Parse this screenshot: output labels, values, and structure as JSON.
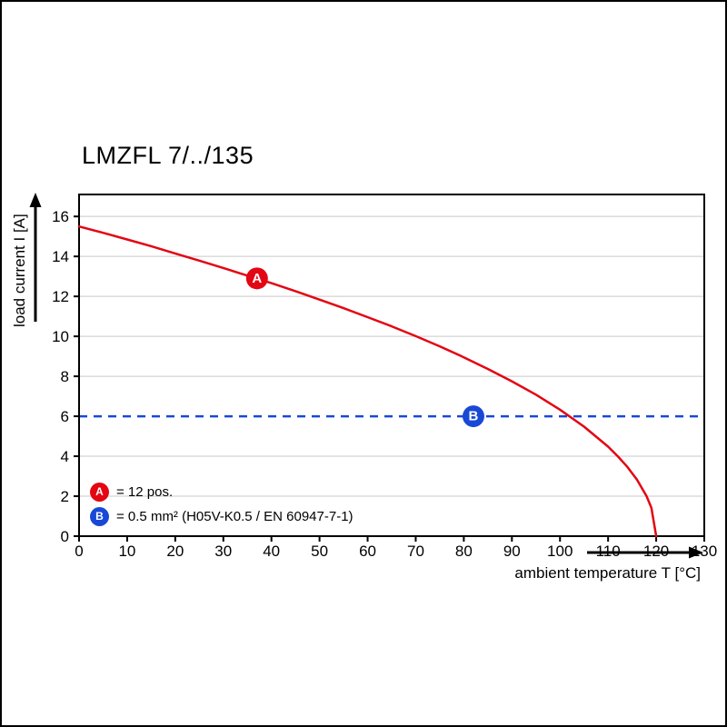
{
  "page": {
    "title": "LMZFL 7/../135"
  },
  "colors": {
    "curve_red": "#e30613",
    "line_blue": "#1849d6",
    "grid_gray": "#c9c9c9",
    "axis_black": "#000000",
    "background": "#ffffff"
  },
  "chart_data": {
    "type": "line",
    "title": "LMZFL 7/../135",
    "xlabel": "ambient temperature T [°C]",
    "ylabel": "load current I [A]",
    "xlim": [
      0,
      130
    ],
    "ylim": [
      0,
      17.1
    ],
    "x_ticks": [
      0,
      10,
      20,
      30,
      40,
      50,
      60,
      70,
      80,
      90,
      100,
      110,
      120,
      130
    ],
    "y_ticks": [
      0,
      2,
      4,
      6,
      8,
      10,
      12,
      14,
      16
    ],
    "grid": "horizontal-light",
    "legend_position": "inside-bottom-left",
    "series": [
      {
        "name": "derating-curve-12pos",
        "color": "#e30613",
        "style": "solid",
        "points": [
          [
            0,
            15.5
          ],
          [
            5,
            15.18
          ],
          [
            10,
            14.85
          ],
          [
            15,
            14.51
          ],
          [
            20,
            14.15
          ],
          [
            25,
            13.79
          ],
          [
            30,
            13.42
          ],
          [
            35,
            13.04
          ],
          [
            40,
            12.66
          ],
          [
            45,
            12.26
          ],
          [
            50,
            11.84
          ],
          [
            55,
            11.41
          ],
          [
            60,
            10.96
          ],
          [
            65,
            10.5
          ],
          [
            70,
            10.01
          ],
          [
            75,
            9.5
          ],
          [
            80,
            8.95
          ],
          [
            85,
            8.37
          ],
          [
            90,
            7.75
          ],
          [
            95,
            7.08
          ],
          [
            100,
            6.33
          ],
          [
            105,
            5.48
          ],
          [
            110,
            4.48
          ],
          [
            112,
            4.0
          ],
          [
            114,
            3.47
          ],
          [
            116,
            2.83
          ],
          [
            118,
            2.0
          ],
          [
            119,
            1.42
          ],
          [
            120,
            0
          ]
        ]
      },
      {
        "name": "rated-current-6A",
        "color": "#1849d6",
        "style": "dashed",
        "points": [
          [
            0,
            6
          ],
          [
            130,
            6
          ]
        ]
      }
    ],
    "markers": [
      {
        "label": "A",
        "color": "#e30613",
        "x": 37,
        "y": 12.9
      },
      {
        "label": "B",
        "color": "#1849d6",
        "x": 82,
        "y": 6
      }
    ],
    "legend": [
      {
        "label": "A",
        "color": "#e30613",
        "text": "= 12 pos."
      },
      {
        "label": "B",
        "color": "#1849d6",
        "text": "= 0.5 mm² (H05V-K0.5 / EN 60947-7-1)"
      }
    ]
  }
}
